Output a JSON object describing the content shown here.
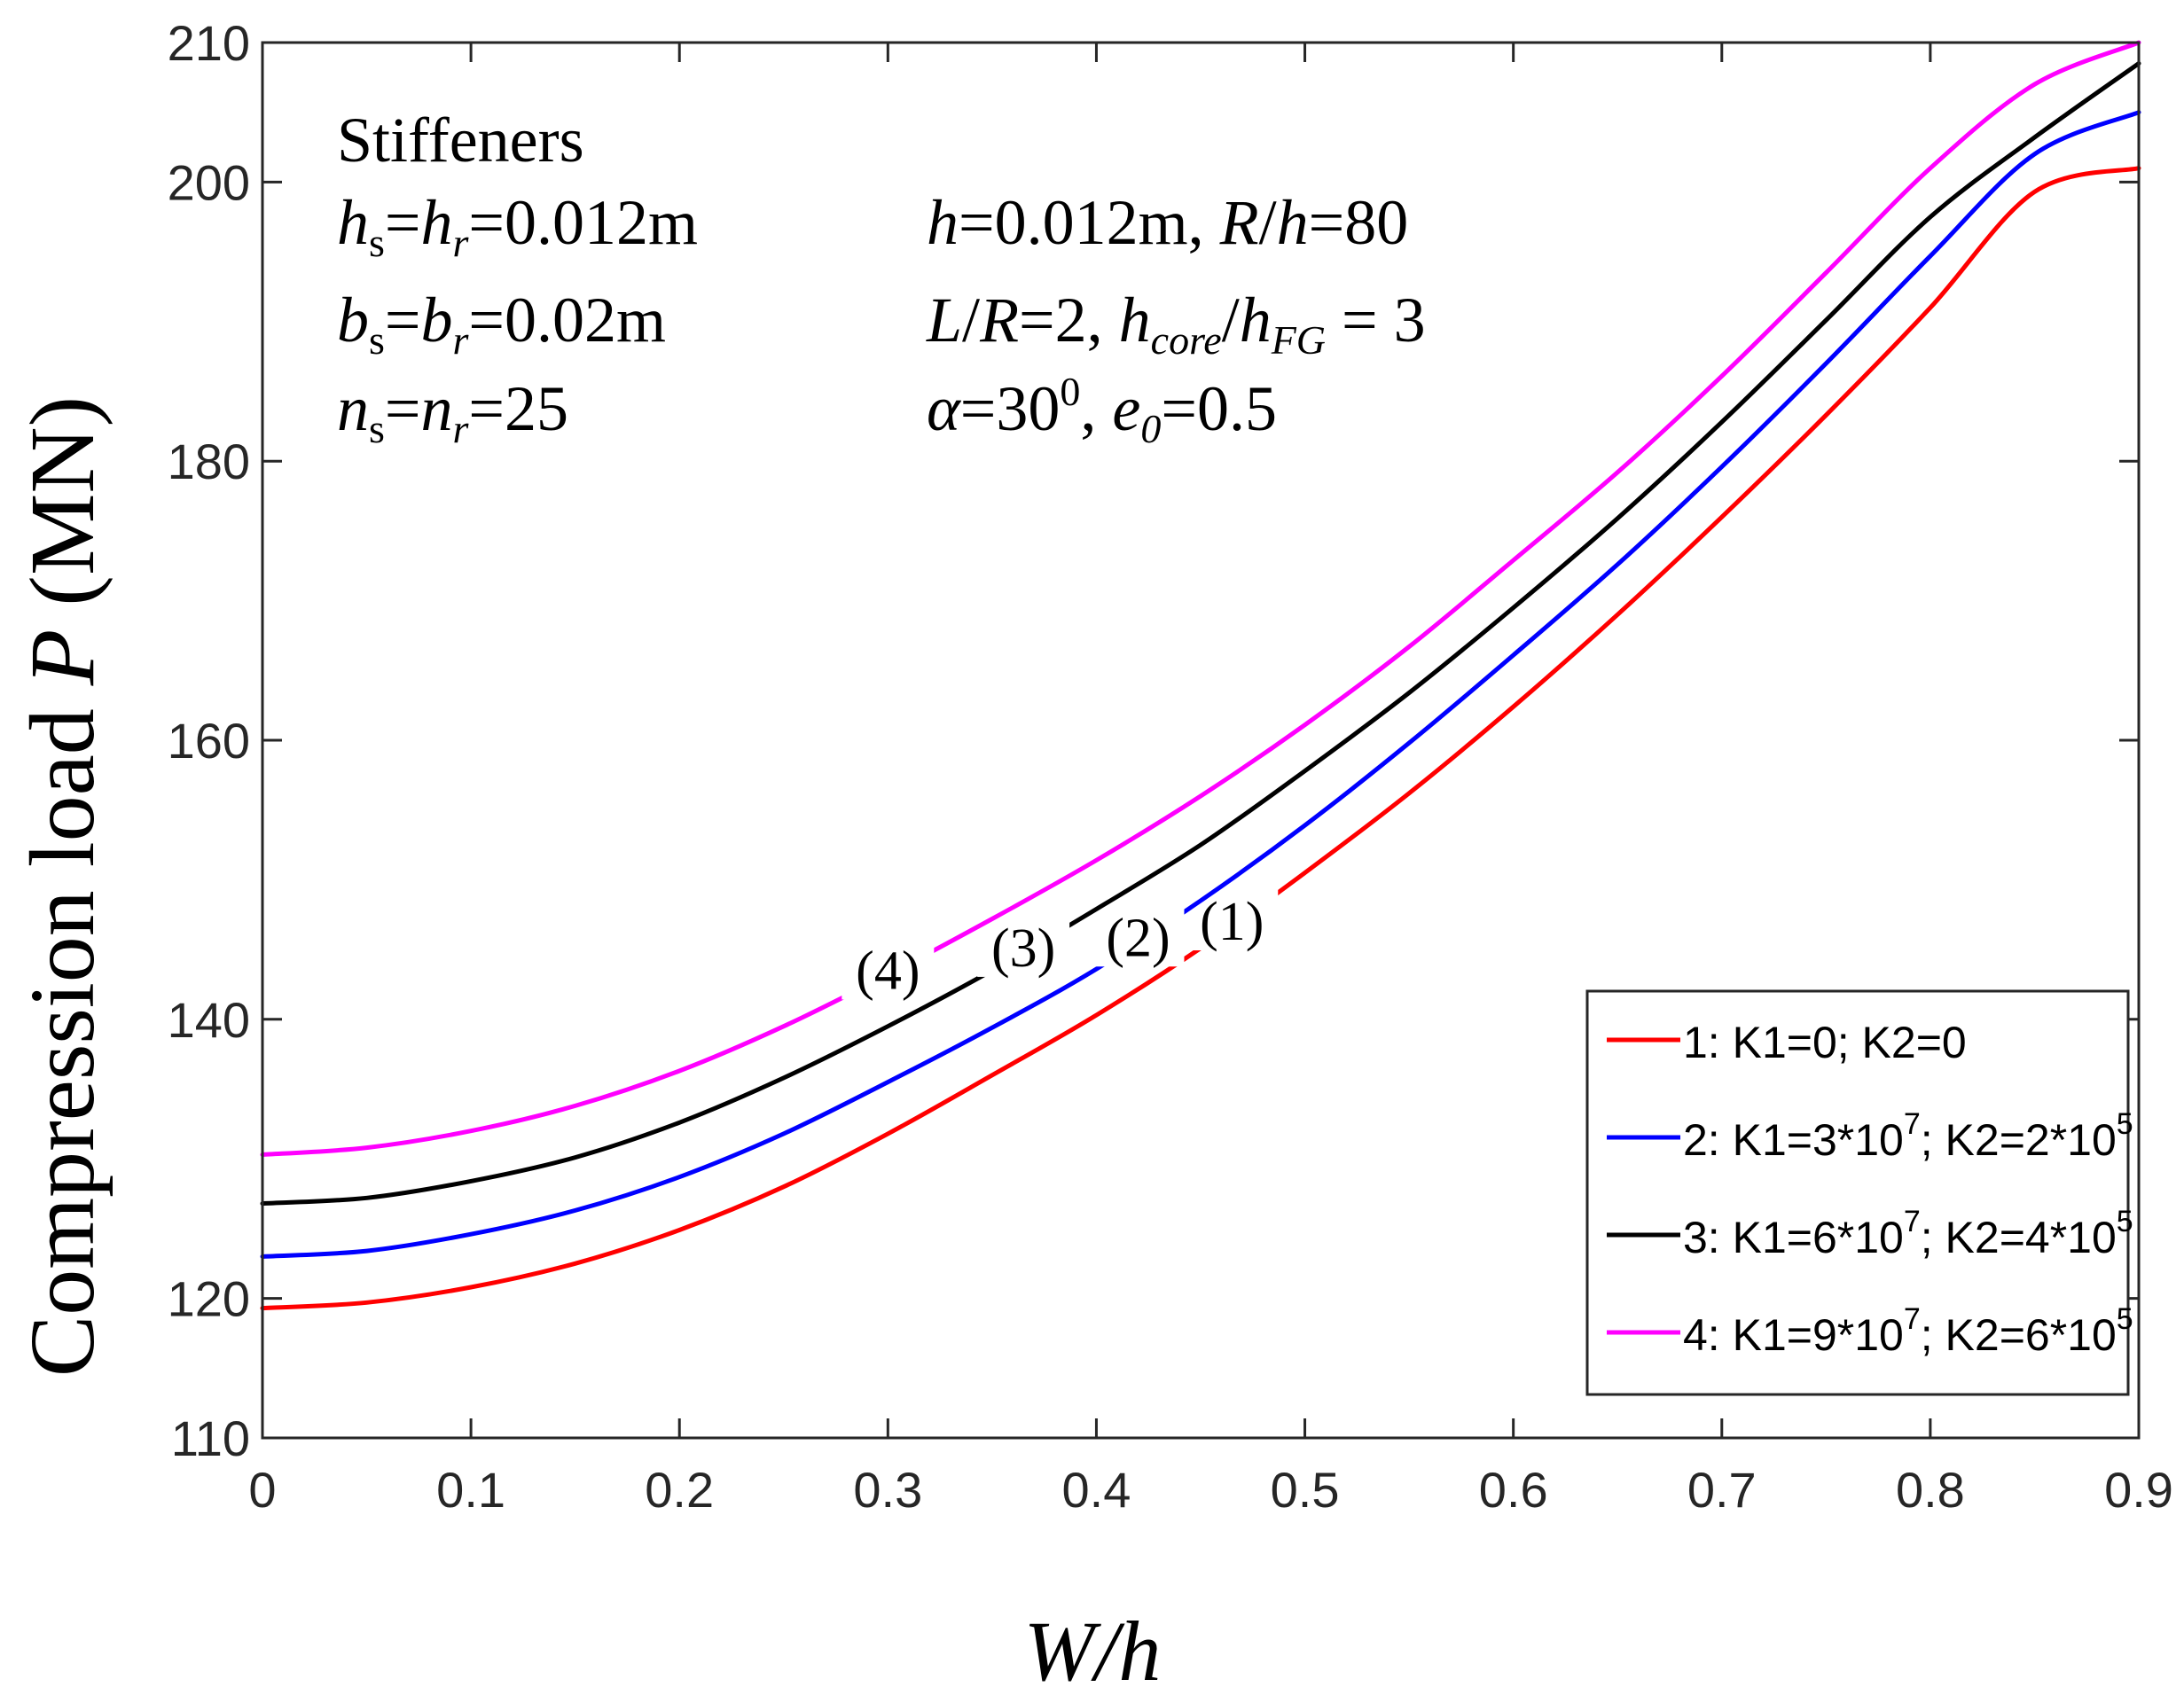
{
  "chart_data": {
    "type": "line",
    "title": "",
    "xlabel": "W/h",
    "ylabel_prefix": "Compression load ",
    "ylabel_var": "P",
    "ylabel_unit": " (MN)",
    "xlim": [
      0,
      0.9
    ],
    "ylim": [
      110,
      210
    ],
    "x_ticks": [
      0,
      0.1,
      0.2,
      0.3,
      0.4,
      0.5,
      0.6,
      0.7,
      0.8,
      0.9
    ],
    "x_tick_labels": [
      "0",
      "0.1",
      "0.2",
      "0.3",
      "0.4",
      "0.5",
      "0.6",
      "0.7",
      "0.8",
      "0.9"
    ],
    "y_ticks": [
      110,
      120,
      140,
      160,
      180,
      200,
      210
    ],
    "y_tick_labels": [
      "110",
      "120",
      "140",
      "160",
      "180",
      "200",
      "210"
    ],
    "grid": false,
    "legend_position": "bottom-right",
    "x": [
      0,
      0.05,
      0.1,
      0.15,
      0.2,
      0.25,
      0.3,
      0.35,
      0.4,
      0.45,
      0.5,
      0.55,
      0.6,
      0.65,
      0.7,
      0.75,
      0.8,
      0.85,
      0.9
    ],
    "series": [
      {
        "name": "1",
        "legend": "1: K1=0; K2=0",
        "color": "#ff0000",
        "marker_label": "(1)",
        "values": [
          119.3,
          119.7,
          120.8,
          122.5,
          124.9,
          128.0,
          131.8,
          136.0,
          140.3,
          145.1,
          150.5,
          156.2,
          162.4,
          169.0,
          176.0,
          183.3,
          191.0,
          199.3,
          201.0
        ]
      },
      {
        "name": "2",
        "legend": "2: K1=3*10^7; K2=2*10^5",
        "color": "#0000ff",
        "marker_label": "(2)",
        "values": [
          123.0,
          123.4,
          124.6,
          126.3,
          128.7,
          131.8,
          135.5,
          139.4,
          143.6,
          148.5,
          153.9,
          159.8,
          166.1,
          172.6,
          179.6,
          187.0,
          194.7,
          202.0,
          205.0
        ]
      },
      {
        "name": "3",
        "legend": "3: K1=6*10^7; K2=4*10^5",
        "color": "#000000",
        "marker_label": "(3)",
        "values": [
          126.8,
          127.2,
          128.4,
          130.1,
          132.6,
          135.8,
          139.5,
          143.5,
          147.9,
          152.5,
          157.8,
          163.4,
          169.5,
          175.9,
          182.8,
          190.1,
          197.5,
          203.2,
          208.5
        ]
      },
      {
        "name": "4",
        "legend": "4: K1=9*10^7; K2=6*10^5",
        "color": "#ff00ff",
        "marker_label": "(4)",
        "values": [
          130.3,
          130.8,
          132.0,
          133.8,
          136.3,
          139.5,
          143.2,
          147.2,
          151.4,
          156.0,
          161.1,
          166.7,
          172.9,
          179.2,
          186.1,
          193.5,
          201.0,
          207.0,
          210.0
        ]
      }
    ],
    "annotations": {
      "stiffeners": "Stiffeners",
      "hs_hr": "hs=hr=0.012m",
      "bs_br": "bs=br=0.02m",
      "ns_nr": "ns=nr=25",
      "h_Rh": "h=0.012m, R/h=80",
      "LR_hcore": "L/R=2, hcore/hFG=3",
      "alpha_e0": "α=30⁰, e0=0.5"
    },
    "annotation_values": {
      "hs_value": "0.012m",
      "bs_value": "0.02m",
      "ns_value": "25",
      "h_value": "0.012m",
      "Rh_value": "80",
      "LR_value": "2",
      "hcore_value": "3",
      "alpha_value": "30",
      "e0_value": "0.5"
    }
  }
}
